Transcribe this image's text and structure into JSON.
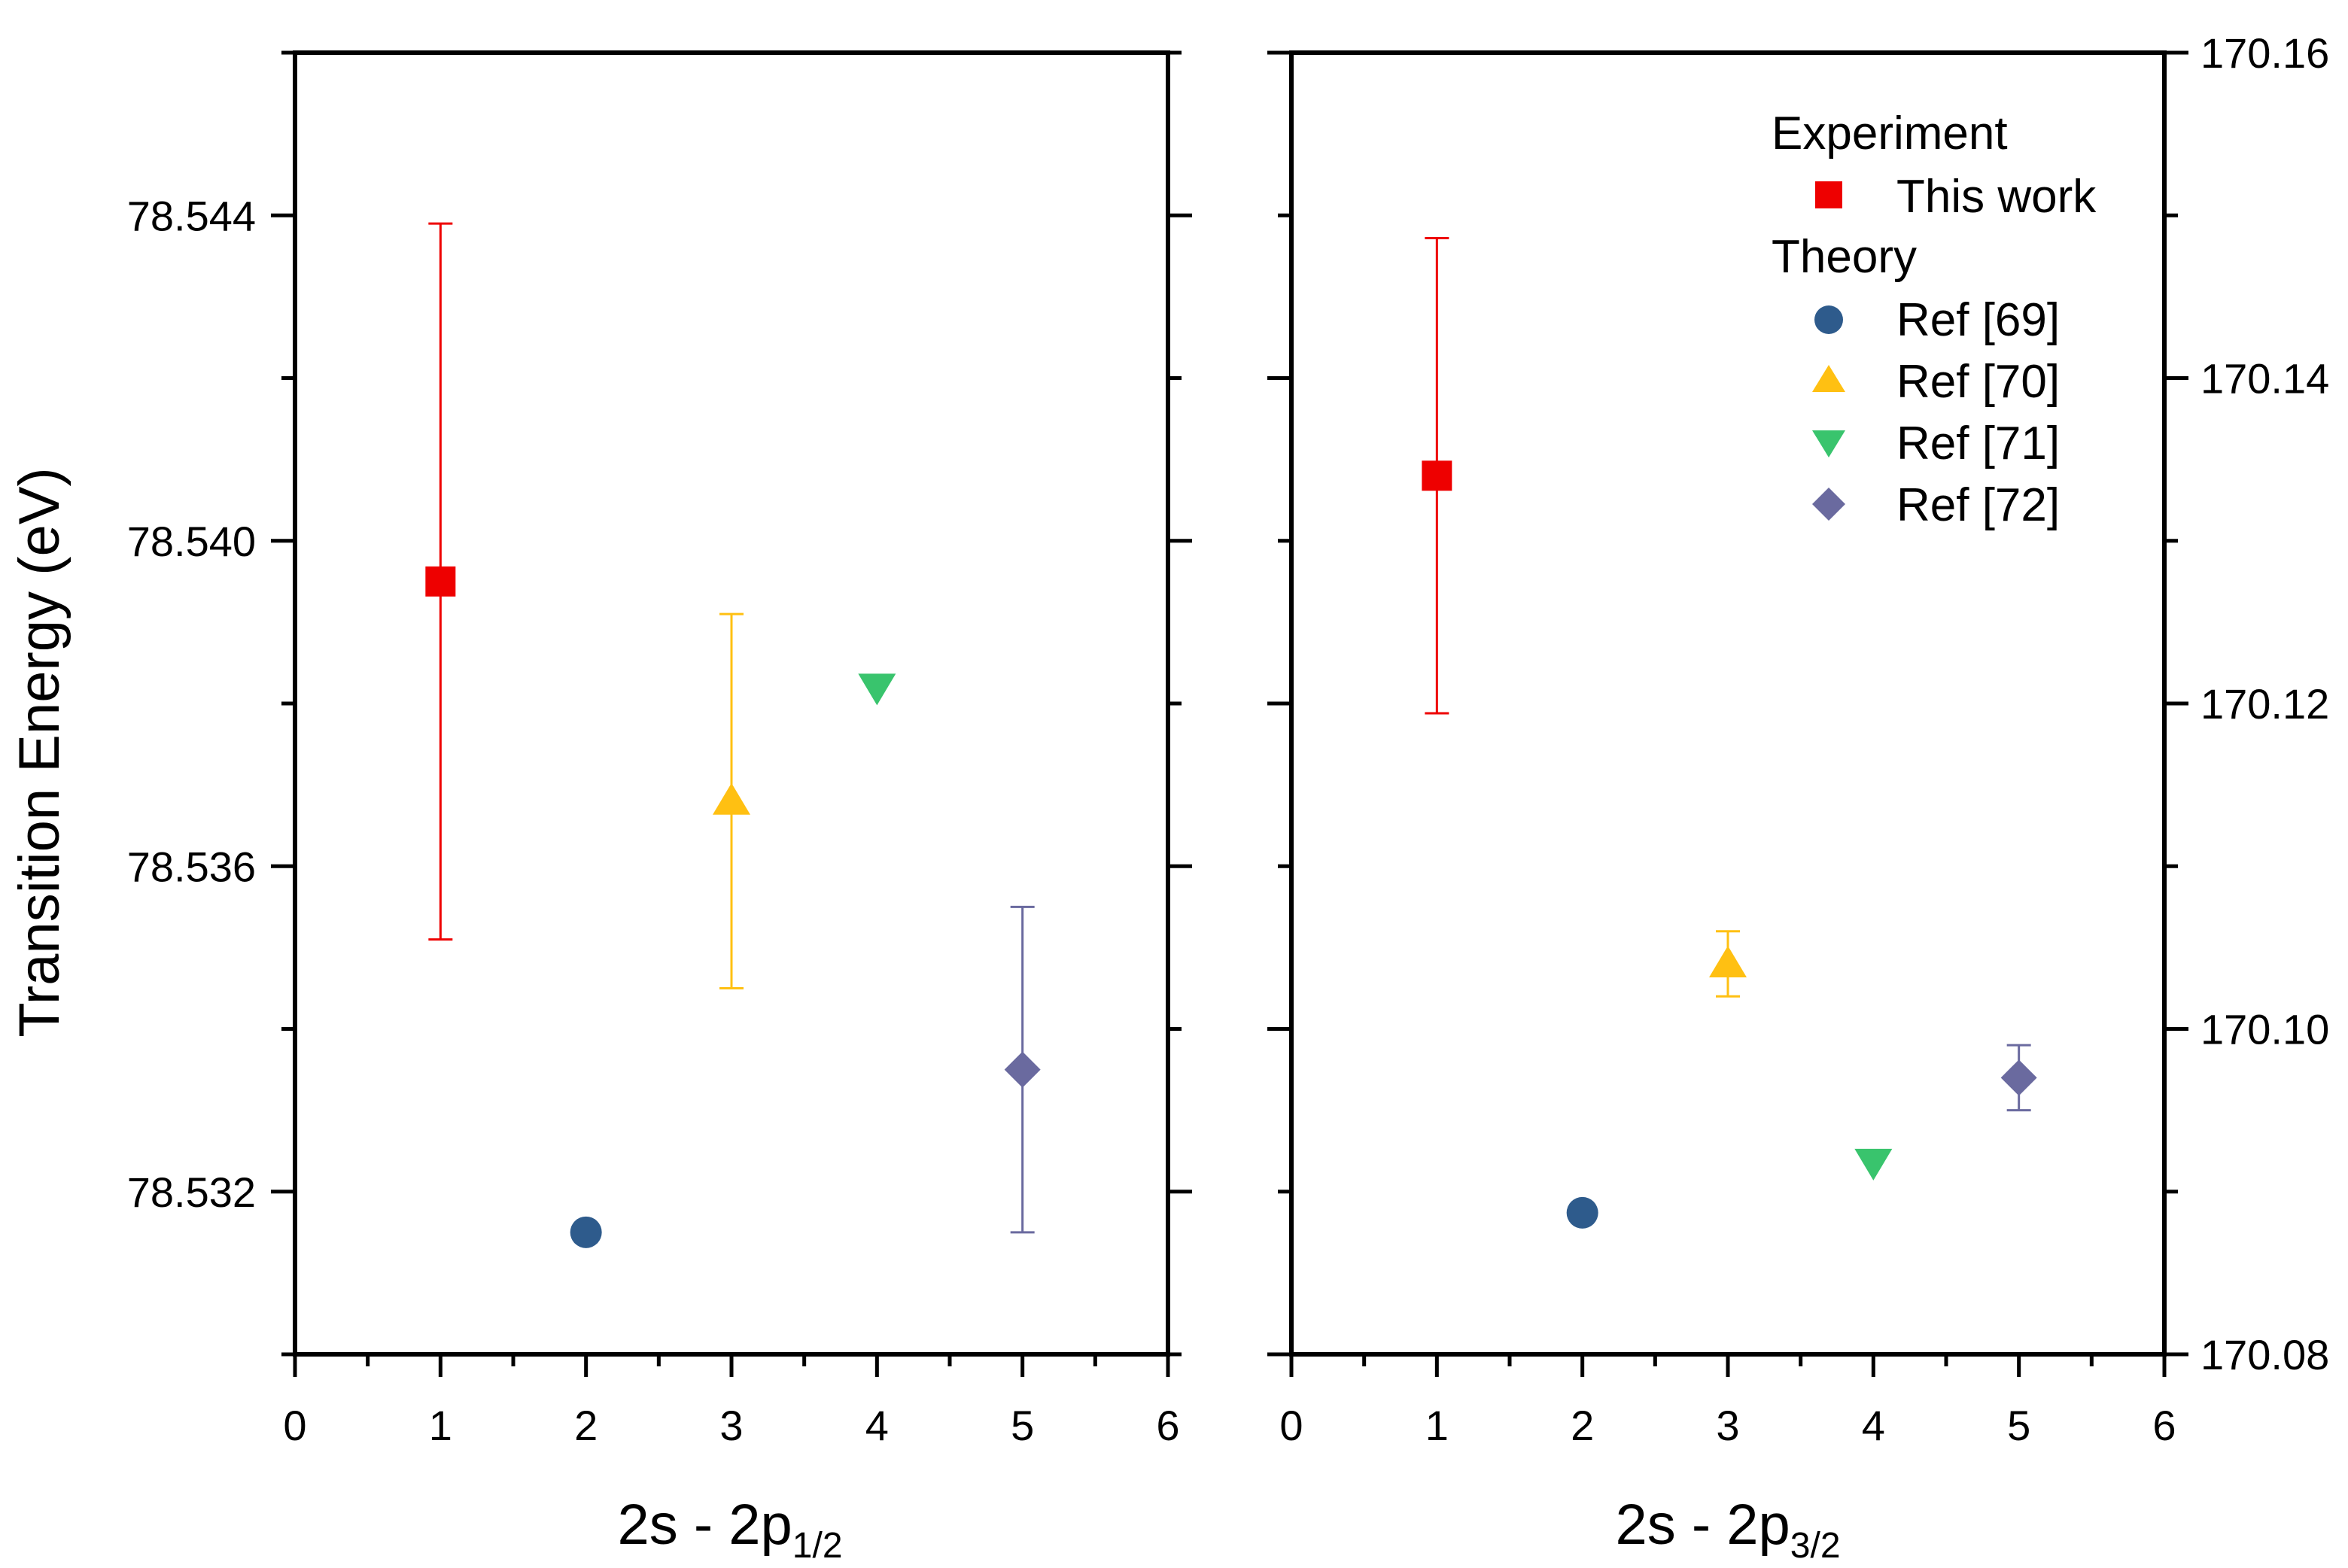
{
  "colors": {
    "axis": "#000000",
    "this_work": "#ee0000",
    "ref69": "#2e5b8c",
    "ref70": "#ffc012",
    "ref71": "#39c46d",
    "ref72": "#6a6a9f"
  },
  "chart_data": [
    {
      "type": "scatter",
      "title": "",
      "xlabel": "2s - 2p",
      "xlabel_sub": "1/2",
      "ylabel": "Transition Energy (eV)",
      "xlim": [
        0,
        6
      ],
      "ylim": [
        78.53,
        78.546
      ],
      "xticks": [
        "0",
        "1",
        "2",
        "3",
        "4",
        "5",
        "6"
      ],
      "yticks": [
        "78.532",
        "78.536",
        "78.540",
        "78.544"
      ],
      "ytick_values": [
        78.532,
        78.536,
        78.54,
        78.544
      ],
      "grid": false,
      "points": [
        {
          "series": "This work",
          "marker": "square",
          "color": "#ee0000",
          "x": 1,
          "y": 78.5395,
          "err_low": 78.5351,
          "err_high": 78.5439
        },
        {
          "series": "Ref [69]",
          "marker": "circle",
          "color": "#2e5b8c",
          "x": 2,
          "y": 78.5315
        },
        {
          "series": "Ref [70]",
          "marker": "triangle-up",
          "color": "#ffc012",
          "x": 3,
          "y": 78.5368,
          "err_low": 78.5345,
          "err_high": 78.5391
        },
        {
          "series": "Ref [71]",
          "marker": "triangle-down",
          "color": "#39c46d",
          "x": 4,
          "y": 78.5382
        },
        {
          "series": "Ref [72]",
          "marker": "diamond",
          "color": "#6a6a9f",
          "x": 5,
          "y": 78.5335,
          "err_low": 78.5315,
          "err_high": 78.5355
        }
      ]
    },
    {
      "type": "scatter",
      "title": "",
      "xlabel": "2s - 2p",
      "xlabel_sub": "3/2",
      "ylabel": "",
      "y_axis_side": "right",
      "xlim": [
        0,
        6
      ],
      "ylim": [
        170.08,
        170.16
      ],
      "xticks": [
        "0",
        "1",
        "2",
        "3",
        "4",
        "5",
        "6"
      ],
      "yticks": [
        "170.08",
        "170.10",
        "170.12",
        "170.14",
        "170.16"
      ],
      "ytick_values": [
        170.08,
        170.1,
        170.12,
        170.14,
        170.16
      ],
      "grid": false,
      "points": [
        {
          "series": "This work",
          "marker": "square",
          "color": "#ee0000",
          "x": 1,
          "y": 170.134,
          "err_low": 170.1194,
          "err_high": 170.1486
        },
        {
          "series": "Ref [69]",
          "marker": "circle",
          "color": "#2e5b8c",
          "x": 2,
          "y": 170.0887
        },
        {
          "series": "Ref [70]",
          "marker": "triangle-up",
          "color": "#ffc012",
          "x": 3,
          "y": 170.104,
          "err_low": 170.102,
          "err_high": 170.106
        },
        {
          "series": "Ref [71]",
          "marker": "triangle-down",
          "color": "#39c46d",
          "x": 4,
          "y": 170.0918
        },
        {
          "series": "Ref [72]",
          "marker": "diamond",
          "color": "#6a6a9f",
          "x": 5,
          "y": 170.097,
          "err_low": 170.095,
          "err_high": 170.099
        }
      ]
    }
  ],
  "legend": {
    "placement": "top-right",
    "groups": [
      {
        "title": "Experiment",
        "items": [
          {
            "label": "This work",
            "marker": "square",
            "color": "#ee0000"
          }
        ]
      },
      {
        "title": "Theory",
        "items": [
          {
            "label": "Ref [69]",
            "marker": "circle",
            "color": "#2e5b8c"
          },
          {
            "label": "Ref [70]",
            "marker": "triangle-up",
            "color": "#ffc012"
          },
          {
            "label": "Ref [71]",
            "marker": "triangle-down",
            "color": "#39c46d"
          },
          {
            "label": "Ref [72]",
            "marker": "diamond",
            "color": "#6a6a9f"
          }
        ]
      }
    ]
  }
}
